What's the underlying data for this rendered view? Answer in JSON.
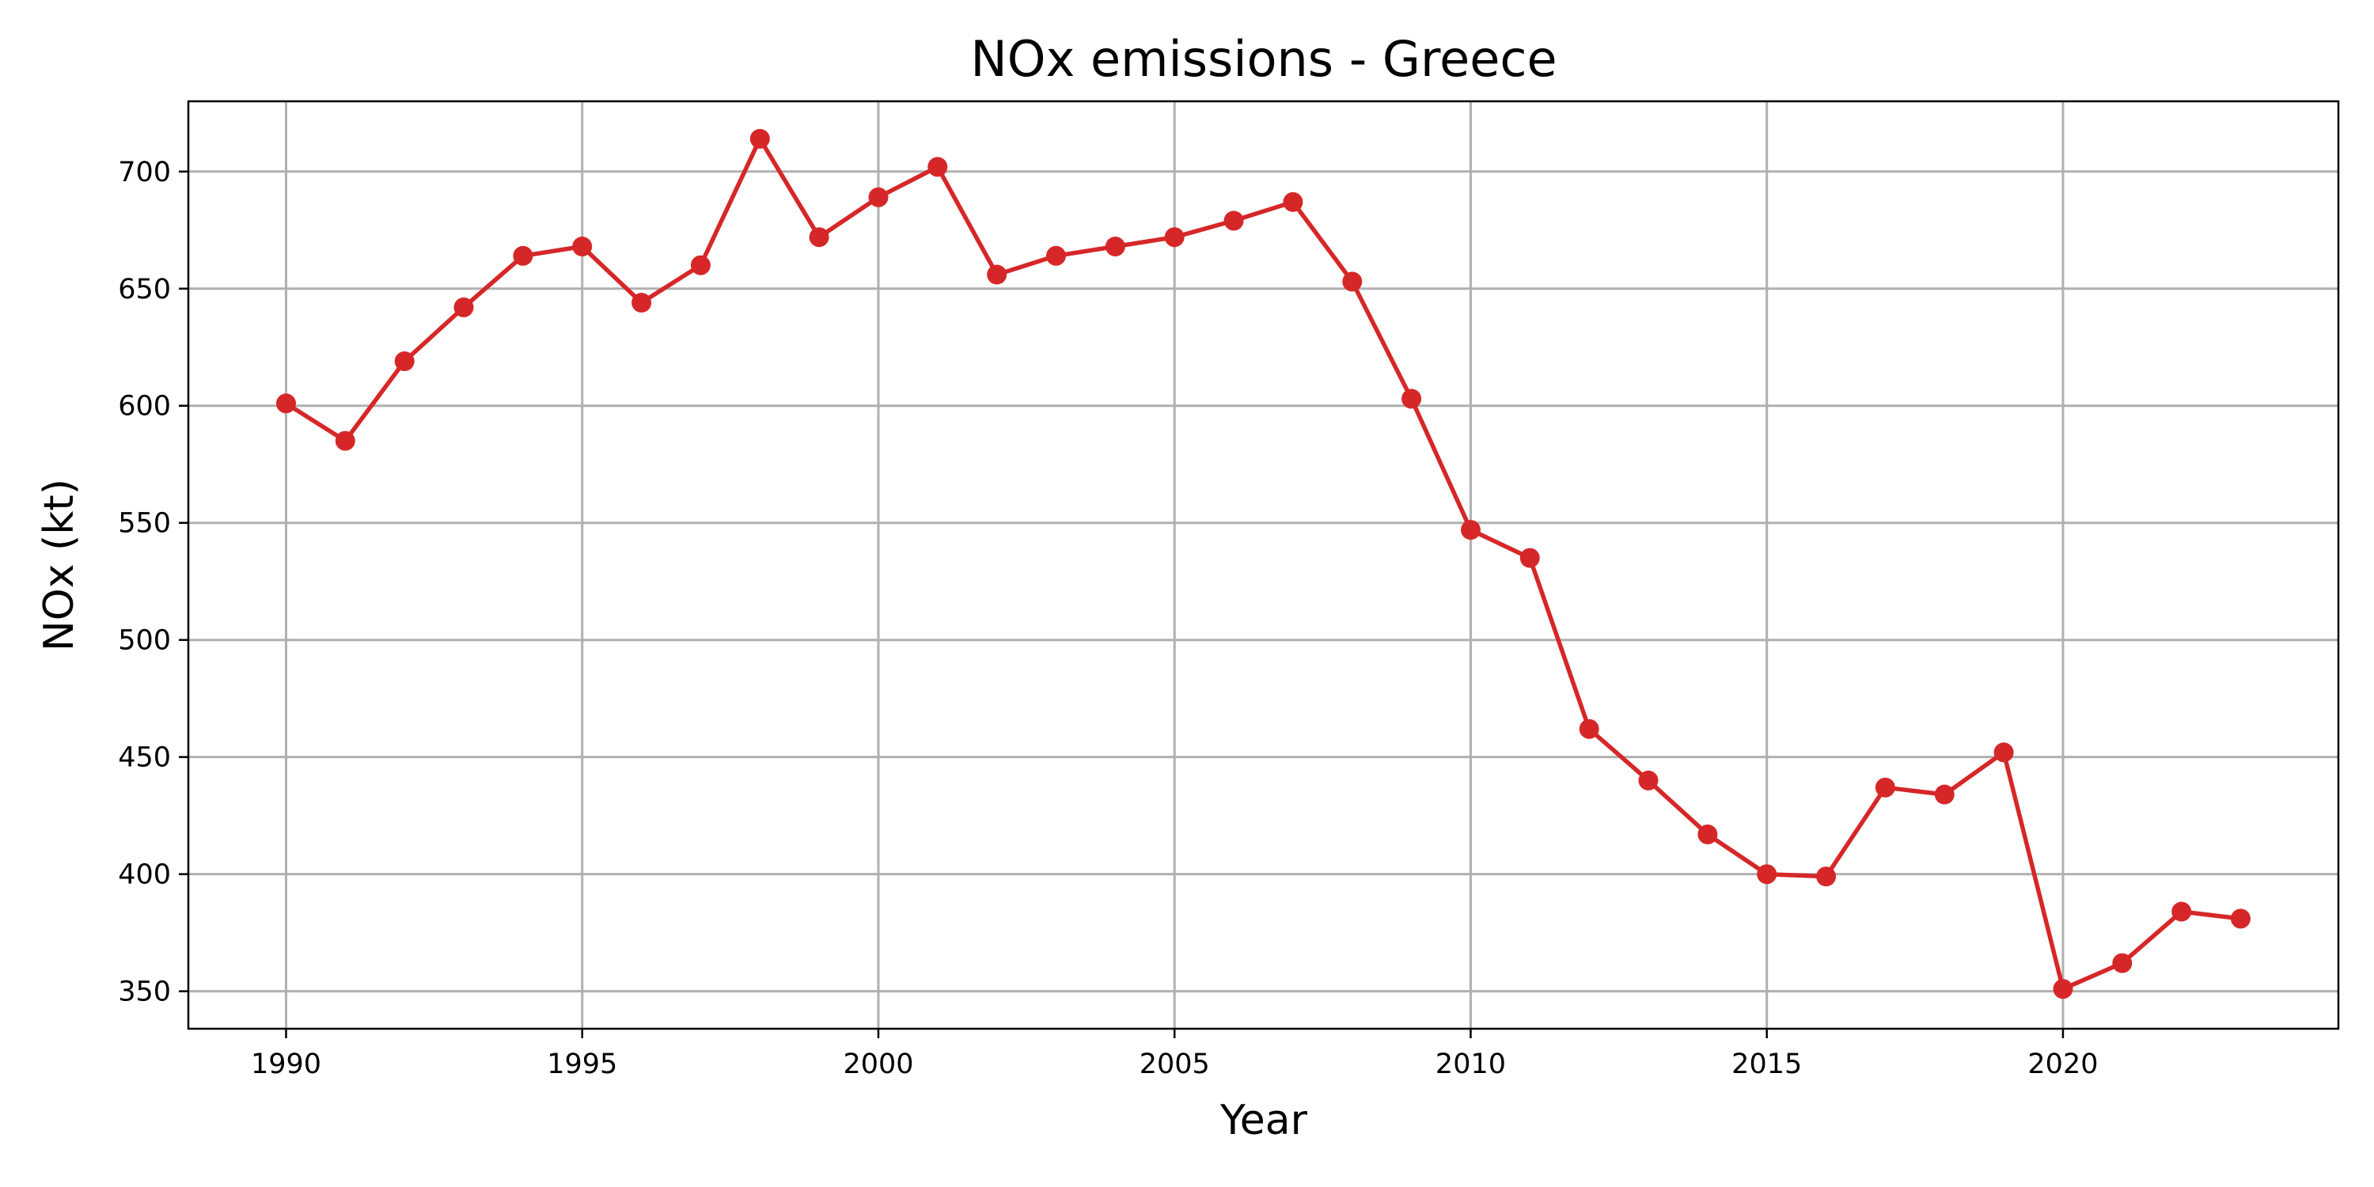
{
  "chart_data": {
    "type": "line",
    "title": "NOx emissions - Greece",
    "xlabel": "Year",
    "ylabel": "NOx (kt)",
    "xlim": [
      1988.35,
      2024.65
    ],
    "ylim": [
      334,
      730
    ],
    "xticks": [
      1990,
      1995,
      2000,
      2005,
      2010,
      2015,
      2020
    ],
    "yticks": [
      350,
      400,
      450,
      500,
      550,
      600,
      650,
      700
    ],
    "grid": true,
    "series": [
      {
        "color": "#d62728",
        "marker": "circle",
        "x": [
          1990,
          1991,
          1992,
          1993,
          1994,
          1995,
          1996,
          1997,
          1998,
          1999,
          2000,
          2001,
          2002,
          2003,
          2004,
          2005,
          2006,
          2007,
          2008,
          2009,
          2010,
          2011,
          2012,
          2013,
          2014,
          2015,
          2016,
          2017,
          2018,
          2019,
          2020,
          2021,
          2022,
          2023
        ],
        "y": [
          601,
          585,
          619,
          642,
          664,
          668,
          644,
          660,
          714,
          672,
          689,
          702,
          656,
          664,
          668,
          672,
          679,
          687,
          653,
          603,
          547,
          535,
          462,
          440,
          417,
          400,
          399,
          437,
          434,
          452,
          351,
          362,
          384,
          381
        ]
      }
    ]
  }
}
